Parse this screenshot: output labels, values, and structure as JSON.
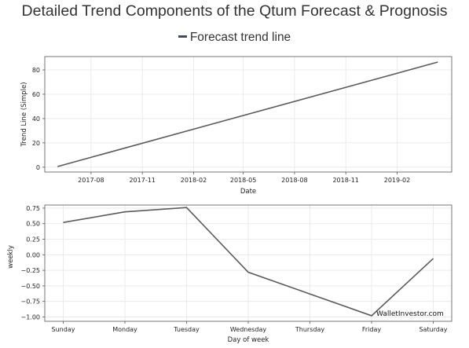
{
  "title": "Detailed Trend Components of the Qtum Forecast & Prognosis",
  "legend_label": "Forecast trend line",
  "watermark": "WalletInvestor.com",
  "colors": {
    "line": "#5a5a5a",
    "legend_swatch": "#434b57",
    "grid": "#e6e6e6",
    "frame": "#555555"
  },
  "chart_data": [
    {
      "type": "line",
      "xlabel": "Date",
      "ylabel": "Trend Line (Simple)",
      "x_ticks": [
        "2017-08",
        "2017-11",
        "2018-02",
        "2018-05",
        "2018-08",
        "2018-11",
        "2019-02"
      ],
      "y_ticks": [
        0,
        20,
        40,
        60,
        80
      ],
      "xlim": [
        "2017-05-10",
        "2019-05-10"
      ],
      "ylim": [
        -4,
        91
      ],
      "grid": true,
      "x": [
        "2017-06-02",
        "2019-04-15"
      ],
      "values": [
        0.5,
        86.5
      ]
    },
    {
      "type": "line",
      "xlabel": "Day of week",
      "ylabel": "weekly",
      "categories": [
        "Sunday",
        "Monday",
        "Tuesday",
        "Wednesday",
        "Thursday",
        "Friday",
        "Saturday"
      ],
      "y_ticks": [
        "0.75",
        "0.50",
        "0.25",
        "0.00",
        "−0.25",
        "−0.50",
        "−0.75",
        "−1.00"
      ],
      "ylim": [
        -1.07,
        0.8
      ],
      "grid": true,
      "values": [
        0.52,
        0.69,
        0.76,
        -0.28,
        -0.63,
        -0.98,
        -0.06
      ]
    }
  ]
}
